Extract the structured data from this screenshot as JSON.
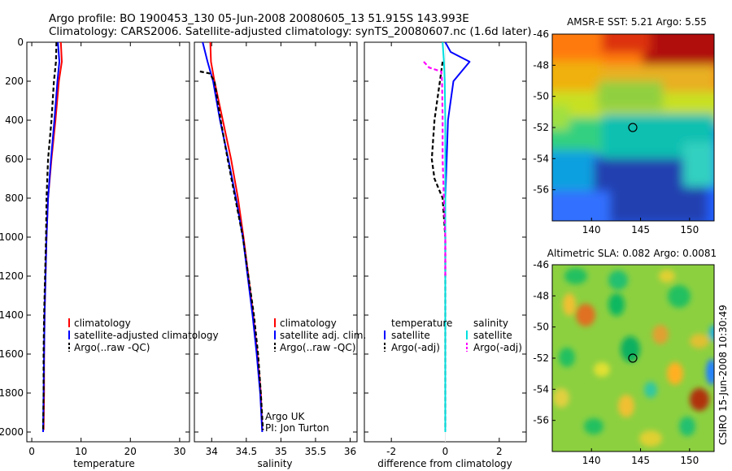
{
  "header": {
    "line1": "Argo profile: BO 1900453_130 05-Jun-2008 20080605_13 51.915S 143.993E",
    "line2": "Climatology: CARS2006. Satellite-adjusted climatology: synTS_20080607.nc (1.6d later)"
  },
  "credit": "CSIRO 15-Jun-2008 10:30:49",
  "chart_data": [
    {
      "type": "line",
      "xlabel": "temperature",
      "ylabel": "",
      "xlim": [
        -1,
        32
      ],
      "ylim": [
        0,
        2050
      ],
      "y_inverted": true,
      "xticks": [
        0,
        10,
        20,
        30
      ],
      "yticks": [
        0,
        200,
        400,
        600,
        800,
        1000,
        1200,
        1400,
        1600,
        1800,
        2000
      ],
      "legend": [
        "climatology",
        "satellite-adjusted climatology",
        "Argo(..raw -QC)"
      ],
      "series": [
        {
          "name": "climatology",
          "color": "#ff0000",
          "style": "solid",
          "x": [
            5.9,
            6.1,
            5.5,
            4.8,
            4.0,
            3.3,
            3.0,
            2.8,
            2.6,
            2.5,
            2.5,
            2.4
          ],
          "y": [
            0,
            100,
            200,
            400,
            600,
            800,
            1000,
            1200,
            1400,
            1600,
            1800,
            1990
          ]
        },
        {
          "name": "satellite-adjusted climatology",
          "color": "#0000ff",
          "style": "solid",
          "x": [
            5.3,
            5.6,
            5.2,
            4.6,
            3.9,
            3.3,
            3.0,
            2.8,
            2.6,
            2.5,
            2.4,
            2.3
          ],
          "y": [
            0,
            100,
            200,
            400,
            600,
            800,
            1000,
            1200,
            1400,
            1600,
            1800,
            2000
          ]
        },
        {
          "name": "Argo(..raw -QC)",
          "color": "#000000",
          "style": "dashed",
          "x": [
            5.0,
            4.9,
            4.5,
            4.0,
            3.3,
            3.0,
            2.9,
            2.7,
            2.5,
            2.4,
            2.4,
            2.3
          ],
          "y": [
            0,
            100,
            200,
            400,
            600,
            800,
            1000,
            1200,
            1400,
            1600,
            1800,
            1990
          ]
        }
      ]
    },
    {
      "type": "line",
      "xlabel": "salinity",
      "xlim": [
        33.75,
        36.1
      ],
      "ylim": [
        0,
        2050
      ],
      "y_inverted": true,
      "xticks": [
        34,
        34.5,
        35,
        35.5,
        36
      ],
      "xtick_labels": [
        "34",
        "34.5",
        "35",
        "35.5",
        "36"
      ],
      "legend": [
        "climatology",
        "satellite adj. clim.",
        "Argo(..raw -QC)"
      ],
      "annotation": [
        "Argo UK",
        "PI: Jon Turton"
      ],
      "series": [
        {
          "name": "climatology",
          "color": "#ff0000",
          "style": "solid",
          "x": [
            33.98,
            33.99,
            34.04,
            34.16,
            34.28,
            34.38,
            34.46,
            34.53,
            34.6,
            34.66,
            34.71,
            34.73
          ],
          "y": [
            0,
            100,
            200,
            400,
            600,
            800,
            1000,
            1200,
            1400,
            1600,
            1800,
            1990
          ]
        },
        {
          "name": "satellite adj. clim.",
          "color": "#0000ff",
          "style": "solid",
          "x": [
            33.87,
            33.94,
            34.02,
            34.12,
            34.24,
            34.35,
            34.45,
            34.52,
            34.59,
            34.65,
            34.7,
            34.73
          ],
          "y": [
            0,
            100,
            200,
            400,
            600,
            800,
            1000,
            1200,
            1400,
            1600,
            1800,
            2000
          ]
        },
        {
          "name": "Argo(..raw -QC)",
          "color": "#000000",
          "style": "dashed",
          "x": [
            33.83,
            33.97,
            34.04,
            34.13,
            34.23,
            34.34,
            34.45,
            34.53,
            34.61,
            34.67,
            34.71,
            34.74
          ],
          "y": [
            150,
            160,
            200,
            400,
            600,
            800,
            1000,
            1200,
            1400,
            1600,
            1800,
            1990
          ]
        }
      ]
    },
    {
      "type": "line",
      "xlabel": "difference from climatology",
      "xlim": [
        -3,
        3
      ],
      "ylim": [
        0,
        2050
      ],
      "y_inverted": true,
      "xticks": [
        -2,
        0,
        2
      ],
      "legend_left": [
        "temperature",
        "satellite",
        "Argo(-adj)"
      ],
      "legend_right": [
        "salinity",
        "satellite",
        "Argo(-adj)"
      ],
      "series": [
        {
          "name": "temperature satellite",
          "color": "#0000ff",
          "style": "solid",
          "x": [
            0,
            0.2,
            0.9,
            0.3,
            0.1,
            0.05,
            0.0,
            0.0,
            0.0,
            0.0,
            0.0,
            0.0,
            0.0
          ],
          "y": [
            0,
            50,
            100,
            200,
            400,
            600,
            800,
            1000,
            1200,
            1400,
            1600,
            1800,
            2000
          ]
        },
        {
          "name": "temperature Argo(-adj)",
          "color": "#000000",
          "style": "dashed",
          "x": [
            -0.1,
            -0.15,
            -0.2,
            -0.3,
            -0.4,
            -0.5,
            -0.4,
            -0.1,
            0.0,
            0.0,
            0.0,
            0.0,
            0.0
          ],
          "y": [
            100,
            150,
            200,
            300,
            400,
            600,
            700,
            800,
            1000,
            1200,
            1400,
            1600,
            1990
          ]
        },
        {
          "name": "salinity satellite",
          "color": "#00e0e0",
          "style": "solid",
          "x": [
            -0.1,
            -0.05,
            -0.02,
            0.0,
            0.0,
            0.0,
            0.0,
            0.0,
            0.0,
            0.0,
            0.0
          ],
          "y": [
            0,
            100,
            200,
            400,
            600,
            800,
            1000,
            1200,
            1400,
            1600,
            2000
          ]
        },
        {
          "name": "salinity Argo(-adj)",
          "color": "#ff00ff",
          "style": "dashed",
          "x": [
            -0.8,
            -0.6,
            -0.15,
            -0.12,
            -0.1,
            -0.1,
            -0.05,
            0.0,
            0.0
          ],
          "y": [
            100,
            130,
            150,
            200,
            400,
            600,
            800,
            1000,
            1200
          ]
        }
      ]
    },
    {
      "type": "heatmap",
      "title": "AMSR-E SST: 5.21 Argo: 5.55",
      "xticks": [
        140,
        145,
        150
      ],
      "yticks": [
        -46,
        -48,
        -50,
        -52,
        -54,
        -56
      ],
      "xlim": [
        136,
        152.5
      ],
      "ylim": [
        -58,
        -46
      ],
      "marker": {
        "lon": 143.993,
        "lat": -51.915
      }
    },
    {
      "type": "heatmap",
      "title": "Altimetric SLA: 0.082 Argo: 0.0081",
      "xticks": [
        140,
        145,
        150
      ],
      "yticks": [
        -46,
        -48,
        -50,
        -52,
        -54,
        -56
      ],
      "xlim": [
        136,
        152.5
      ],
      "ylim": [
        -58,
        -46
      ],
      "marker": {
        "lon": 143.993,
        "lat": -51.915
      }
    }
  ]
}
